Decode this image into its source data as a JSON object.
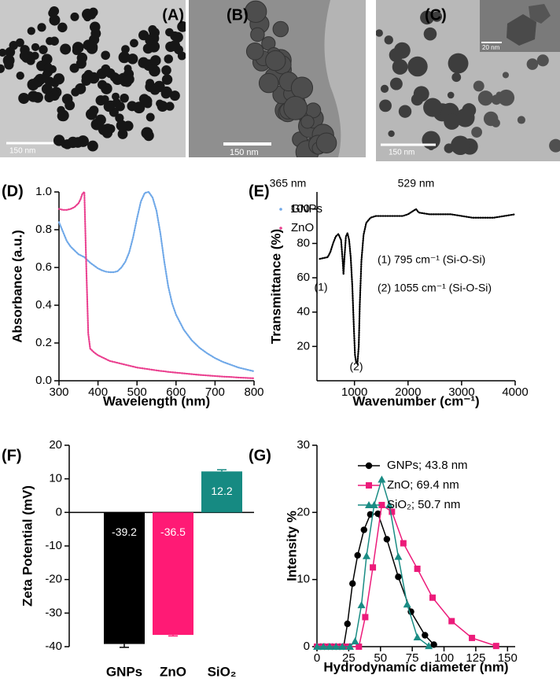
{
  "images": [
    {
      "label": "(A)",
      "scale_bar": "150 nm"
    },
    {
      "label": "(B)",
      "scale_bar": "150 nm"
    },
    {
      "label": "(C)",
      "scale_bar": "150 nm",
      "inset_scale_bar": "20 nm"
    }
  ],
  "chart_data": [
    {
      "type": "line",
      "panel_label": "(D)",
      "x_label": "Wavelength (nm)",
      "y_label": "Absorbance (a.u.)",
      "annotations": [
        "365 nm",
        "529 nm"
      ],
      "line_style": "dotted",
      "x": [
        300,
        310,
        320,
        330,
        340,
        350,
        355,
        360,
        365,
        370,
        375,
        380,
        390,
        400,
        410,
        420,
        430,
        440,
        450,
        460,
        470,
        480,
        490,
        500,
        510,
        520,
        530,
        540,
        550,
        560,
        570,
        580,
        590,
        600,
        620,
        640,
        660,
        680,
        700,
        720,
        740,
        760,
        780,
        800
      ],
      "series": [
        {
          "name": "GNPs",
          "color": "#6fa8e8",
          "values": [
            0.84,
            0.79,
            0.74,
            0.71,
            0.69,
            0.67,
            0.665,
            0.66,
            0.655,
            0.645,
            0.635,
            0.625,
            0.61,
            0.595,
            0.585,
            0.578,
            0.575,
            0.575,
            0.58,
            0.6,
            0.63,
            0.68,
            0.76,
            0.86,
            0.95,
            0.995,
            1.0,
            0.97,
            0.9,
            0.78,
            0.63,
            0.5,
            0.41,
            0.35,
            0.27,
            0.215,
            0.175,
            0.145,
            0.12,
            0.1,
            0.085,
            0.07,
            0.06,
            0.05
          ]
        },
        {
          "name": "ZnO",
          "color": "#ea3e8e",
          "values": [
            0.91,
            0.905,
            0.905,
            0.91,
            0.92,
            0.94,
            0.96,
            0.99,
            1.0,
            0.6,
            0.25,
            0.17,
            0.15,
            0.135,
            0.125,
            0.115,
            0.105,
            0.1,
            0.095,
            0.09,
            0.085,
            0.08,
            0.075,
            0.07,
            0.067,
            0.064,
            0.061,
            0.058,
            0.055,
            0.052,
            0.05,
            0.047,
            0.045,
            0.043,
            0.039,
            0.035,
            0.031,
            0.028,
            0.025,
            0.022,
            0.02,
            0.017,
            0.015,
            0.013
          ]
        }
      ],
      "xlim": [
        300,
        800
      ],
      "xticks": [
        300,
        400,
        500,
        600,
        700,
        800
      ],
      "ylim": [
        0,
        1
      ],
      "yticks": [
        {
          "value": 0,
          "label": "0.0"
        },
        0.2,
        0.4,
        0.6,
        0.8,
        {
          "value": 1,
          "label": "1.0"
        }
      ]
    },
    {
      "type": "line",
      "panel_label": "(E)",
      "x_label": "Wavenumber (cm⁻¹)",
      "y_label": "Transmittance (%)",
      "annotations": [
        "(1)",
        "(2)",
        "(1) 795 cm⁻¹ (Si-O-Si)",
        "(2) 1055 cm⁻¹ (Si-O-Si)"
      ],
      "line_style": "dotted",
      "x": [
        350,
        500,
        550,
        600,
        650,
        700,
        750,
        780,
        795,
        810,
        840,
        870,
        900,
        930,
        960,
        990,
        1010,
        1030,
        1055,
        1080,
        1100,
        1130,
        1170,
        1220,
        1300,
        1400,
        1500,
        1700,
        1900,
        2000,
        2100,
        2150,
        2200,
        2400,
        2600,
        2800,
        3000,
        3200,
        3400,
        3600,
        3800,
        4000
      ],
      "series": [
        {
          "color": "#000000",
          "values": [
            71,
            72,
            75,
            80,
            84,
            85.5,
            82,
            70,
            62,
            70,
            84,
            86,
            82,
            72,
            55,
            30,
            15,
            11,
            10,
            20,
            45,
            70,
            85,
            92,
            95,
            96,
            96,
            96,
            96,
            97,
            99,
            100,
            98,
            97,
            97,
            97,
            96,
            95,
            95,
            95,
            96,
            97
          ]
        }
      ],
      "xlim": [
        300,
        4000
      ],
      "xticks": [
        1000,
        2000,
        3000,
        4000
      ],
      "ylim": [
        0,
        110
      ],
      "yticks": [
        20,
        40,
        60,
        80,
        100
      ]
    },
    {
      "type": "bar",
      "panel_label": "(F)",
      "y_label": "Zeta Potential (mV)",
      "categories": [
        "GNPs",
        "ZnO",
        "SiO₂"
      ],
      "values": [
        -39.2,
        -36.5,
        12.2
      ],
      "errors": [
        1.0,
        0.3,
        0.5
      ],
      "colors": [
        "#000000",
        "#ff1a75",
        "#168a82"
      ],
      "ylim": [
        -40,
        20
      ],
      "yticks": [
        -40,
        -30,
        -20,
        -10,
        0,
        10,
        20
      ]
    },
    {
      "type": "line",
      "panel_label": "(G)",
      "x_label": "Hydrodynamic diameter (nm)",
      "y_label": "Intensity %",
      "series": [
        {
          "name": "GNPs; 43.8 nm",
          "color": "#000000",
          "marker": "circle",
          "x": [
            0,
            3,
            6,
            9,
            12,
            15,
            18,
            21,
            24,
            28,
            32,
            37,
            42,
            48,
            55,
            64,
            74,
            85,
            92
          ],
          "values": [
            0,
            0,
            0,
            0,
            0,
            0,
            0,
            0,
            3.4,
            9.4,
            13.6,
            17.4,
            19.7,
            19.8,
            16,
            10.4,
            5.2,
            1.7,
            0.3
          ]
        },
        {
          "name": "ZnO; 69.4 nm",
          "color": "#ec1b7a",
          "marker": "square",
          "x": [
            0,
            5,
            10,
            15,
            20,
            25,
            33,
            38,
            44,
            51,
            59,
            68,
            79,
            91,
            106,
            122,
            141
          ],
          "values": [
            0,
            0,
            0,
            0,
            0,
            0,
            0,
            4.4,
            11.8,
            21.1,
            20.1,
            15.4,
            11.6,
            7.3,
            3.8,
            1.3,
            0.1
          ]
        },
        {
          "name": "SiO₂; 50.7 nm",
          "color": "#1a8c84",
          "marker": "triangle",
          "x": [
            0,
            5,
            10,
            15,
            20,
            26,
            30,
            35,
            39,
            45,
            51,
            57,
            64,
            71,
            79,
            88
          ],
          "values": [
            0,
            0,
            0,
            0,
            0,
            0,
            0.8,
            6.2,
            13.5,
            21.1,
            24.9,
            21.1,
            13.4,
            6.3,
            1.4,
            0.1
          ]
        }
      ],
      "xlim": [
        0,
        156
      ],
      "xticks": [
        0,
        25,
        50,
        75,
        100,
        125,
        150
      ],
      "ylim": [
        0,
        30
      ],
      "yticks": [
        0,
        10,
        20,
        30
      ]
    }
  ]
}
